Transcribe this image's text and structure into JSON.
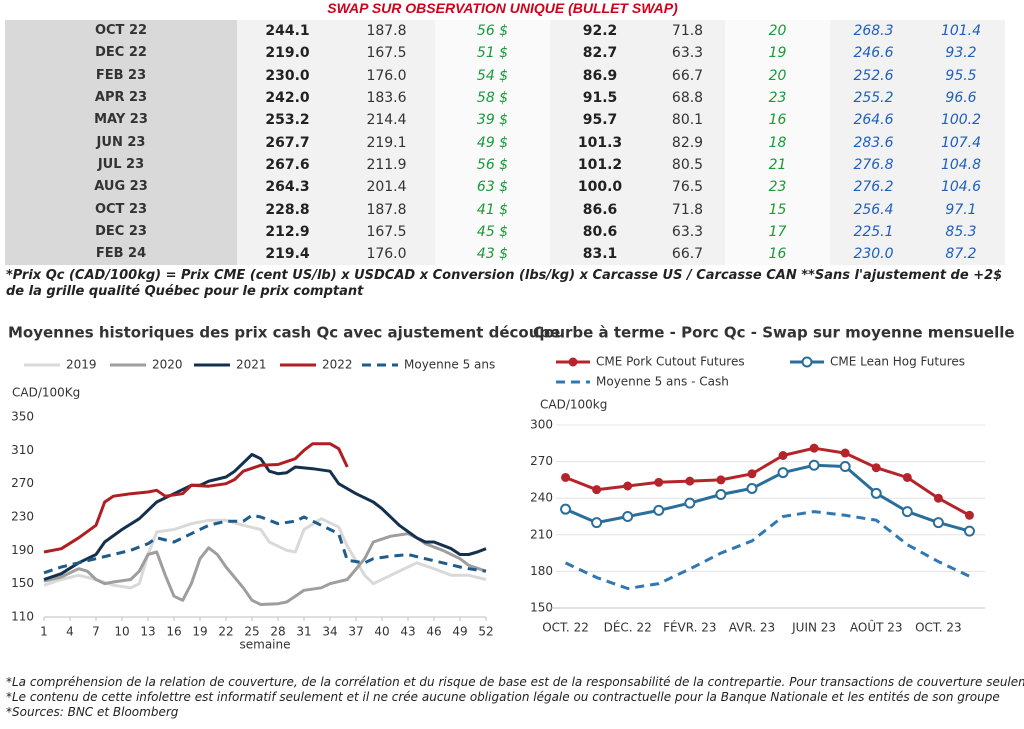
{
  "header": {
    "title": "SWAP SUR OBSERVATION UNIQUE (BULLET SWAP)"
  },
  "table": {
    "rows": [
      [
        "OCT 22",
        "244.1",
        "187.8",
        "56 $",
        "92.2",
        "71.8",
        "20",
        "268.3",
        "101.4"
      ],
      [
        "DEC 22",
        "219.0",
        "167.5",
        "51 $",
        "82.7",
        "63.3",
        "19",
        "246.6",
        "93.2"
      ],
      [
        "FEB 23",
        "230.0",
        "176.0",
        "54 $",
        "86.9",
        "66.7",
        "20",
        "252.6",
        "95.5"
      ],
      [
        "APR 23",
        "242.0",
        "183.6",
        "58 $",
        "91.5",
        "68.8",
        "23",
        "255.2",
        "96.6"
      ],
      [
        "MAY 23",
        "253.2",
        "214.4",
        "39 $",
        "95.7",
        "80.1",
        "16",
        "264.6",
        "100.2"
      ],
      [
        "JUN 23",
        "267.7",
        "219.1",
        "49 $",
        "101.3",
        "82.9",
        "18",
        "283.6",
        "107.4"
      ],
      [
        "JUL 23",
        "267.6",
        "211.9",
        "56 $",
        "101.2",
        "80.5",
        "21",
        "276.8",
        "104.8"
      ],
      [
        "AUG 23",
        "264.3",
        "201.4",
        "63 $",
        "100.0",
        "76.5",
        "23",
        "276.2",
        "104.6"
      ],
      [
        "OCT 23",
        "228.8",
        "187.8",
        "41 $",
        "86.6",
        "71.8",
        "15",
        "256.4",
        "97.1"
      ],
      [
        "DEC 23",
        "212.9",
        "167.5",
        "45 $",
        "80.6",
        "63.3",
        "17",
        "225.1",
        "85.3"
      ],
      [
        "FEB 24",
        "219.4",
        "176.0",
        "43 $",
        "83.1",
        "66.7",
        "16",
        "230.0",
        "87.2"
      ]
    ]
  },
  "note": "*Prix Qc (CAD/100kg) = Prix CME (cent US/lb) x USDCAD x Conversion (lbs/kg) x Carcasse US / Carcasse CAN **Sans l'ajustement de +2$ de la grille qualité Québec pour le prix comptant",
  "chart_data": [
    {
      "type": "line",
      "title": "Moyennes historiques des prix cash Qc avec ajustement découpe",
      "ylabel": "CAD/100Kg",
      "xlabel": "semaine",
      "xlim": [
        1,
        52
      ],
      "xticks": [
        1,
        4,
        7,
        10,
        13,
        16,
        19,
        22,
        25,
        28,
        31,
        34,
        37,
        40,
        43,
        46,
        49,
        52
      ],
      "ylim": [
        110,
        350
      ],
      "yticks": [
        110,
        150,
        190,
        230,
        270,
        310,
        350
      ],
      "grid": false,
      "series": [
        {
          "name": "2019",
          "color": "#d9d9d9",
          "dash": false,
          "x": [
            1,
            3,
            5,
            7,
            9,
            11,
            12,
            13,
            14,
            16,
            18,
            20,
            22,
            24,
            26,
            27,
            29,
            30,
            31,
            33,
            35,
            36,
            38,
            39,
            41,
            43,
            44,
            46,
            48,
            50,
            52
          ],
          "values": [
            148,
            155,
            160,
            155,
            148,
            145,
            150,
            185,
            212,
            215,
            222,
            226,
            226,
            220,
            215,
            200,
            190,
            188,
            215,
            228,
            218,
            195,
            160,
            150,
            160,
            170,
            175,
            168,
            160,
            160,
            155
          ]
        },
        {
          "name": "2020",
          "color": "#9e9e9e",
          "dash": false,
          "x": [
            1,
            3,
            4,
            5,
            6,
            7,
            8,
            9,
            11,
            12,
            13,
            14,
            15,
            16,
            17,
            18,
            19,
            20,
            21,
            22,
            24,
            25,
            26,
            28,
            29,
            30,
            31,
            33,
            34,
            36,
            38,
            39,
            41,
            43,
            44,
            45,
            47,
            49,
            50,
            52
          ],
          "values": [
            153,
            158,
            163,
            168,
            165,
            155,
            150,
            152,
            155,
            165,
            185,
            188,
            160,
            135,
            130,
            150,
            180,
            193,
            185,
            170,
            145,
            130,
            125,
            126,
            128,
            135,
            142,
            145,
            150,
            155,
            180,
            200,
            207,
            210,
            205,
            198,
            190,
            180,
            172,
            165
          ]
        },
        {
          "name": "2021",
          "color": "#14304f",
          "dash": false,
          "x": [
            1,
            3,
            5,
            7,
            8,
            10,
            12,
            14,
            16,
            18,
            19,
            20,
            22,
            23,
            25,
            26,
            27,
            28,
            29,
            30,
            32,
            34,
            35,
            37,
            39,
            40,
            42,
            44,
            45,
            46,
            48,
            49,
            50,
            51,
            52
          ],
          "values": [
            155,
            162,
            175,
            185,
            200,
            215,
            228,
            248,
            258,
            268,
            268,
            273,
            278,
            285,
            305,
            300,
            285,
            282,
            283,
            290,
            288,
            285,
            270,
            258,
            248,
            240,
            220,
            205,
            200,
            200,
            192,
            185,
            185,
            188,
            192
          ]
        },
        {
          "name": "2022",
          "color": "#b01e23",
          "dash": false,
          "x": [
            1,
            3,
            5,
            7,
            8,
            9,
            11,
            13,
            14,
            15,
            17,
            18,
            20,
            22,
            23,
            24,
            26,
            28,
            30,
            31,
            32,
            34,
            35,
            36
          ],
          "values": [
            188,
            192,
            205,
            220,
            248,
            255,
            258,
            260,
            262,
            255,
            258,
            268,
            267,
            270,
            275,
            285,
            292,
            293,
            300,
            310,
            318,
            318,
            312,
            290
          ]
        },
        {
          "name": "Moyenne 5 ans",
          "color": "#1f5c8c",
          "dash": true,
          "x": [
            1,
            3,
            5,
            7,
            9,
            11,
            13,
            14,
            16,
            18,
            20,
            22,
            24,
            25,
            26,
            28,
            30,
            31,
            33,
            35,
            36,
            38,
            39,
            41,
            43,
            45,
            47,
            49,
            50,
            52
          ],
          "values": [
            163,
            170,
            175,
            180,
            185,
            190,
            198,
            205,
            200,
            210,
            220,
            225,
            225,
            232,
            230,
            222,
            225,
            230,
            220,
            210,
            178,
            175,
            180,
            183,
            185,
            180,
            175,
            170,
            168,
            165
          ]
        }
      ]
    },
    {
      "type": "line",
      "title": "Courbe à terme - Porc Qc - Swap sur moyenne mensuelle",
      "ylabel": "CAD/100kg",
      "categories": [
        "OCT. 22",
        null,
        "DÉC. 22",
        null,
        "FÉVR. 23",
        null,
        "AVR. 23",
        null,
        "JUIN 23",
        null,
        "AOÛT 23",
        null,
        "OCT. 23",
        null
      ],
      "ylim": [
        150,
        300
      ],
      "yticks": [
        150,
        180,
        210,
        240,
        270,
        300
      ],
      "grid": true,
      "series": [
        {
          "name": "CME Pork Cutout Futures",
          "color": "#b5242b",
          "dash": false,
          "marker": "filled",
          "values": [
            257,
            247,
            250,
            253,
            254,
            255,
            260,
            275,
            281,
            277,
            265,
            257,
            240,
            226
          ]
        },
        {
          "name": "CME Lean Hog Futures",
          "color": "#2a6e9b",
          "dash": false,
          "marker": "open",
          "values": [
            231,
            220,
            225,
            230,
            236,
            243,
            248,
            261,
            267,
            266,
            244,
            229,
            220,
            213
          ]
        },
        {
          "name": "Moyenne 5 ans - Cash",
          "color": "#2f78b4",
          "dash": true,
          "values": [
            187,
            175,
            166,
            170,
            182,
            195,
            205,
            225,
            229,
            226,
            222,
            202,
            188,
            176
          ]
        }
      ]
    }
  ],
  "footnotes": [
    "*La compréhension de la relation de couverture, de la corrélation et du risque de base est de la responsabilité de la contrepartie. Pour transactions de couverture seulement",
    "*Le contenu de cette infolettre est informatif seulement et il ne crée aucune obligation légale ou contractuelle pour la Banque Nationale et les entités de son groupe",
    "*Sources: BNC et Bloomberg"
  ]
}
